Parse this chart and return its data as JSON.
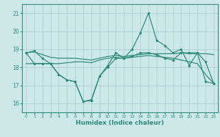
{
  "xlabel": "Humidex (Indice chaleur)",
  "x": [
    0,
    1,
    2,
    3,
    4,
    5,
    6,
    7,
    8,
    9,
    10,
    11,
    12,
    13,
    14,
    15,
    16,
    17,
    18,
    19,
    20,
    21,
    22,
    23
  ],
  "series_flat1": [
    18.8,
    18.85,
    18.7,
    18.55,
    18.5,
    18.5,
    18.5,
    18.45,
    18.4,
    18.5,
    18.6,
    18.65,
    18.6,
    18.65,
    18.7,
    18.75,
    18.75,
    18.75,
    18.75,
    18.8,
    18.75,
    18.75,
    18.75,
    18.7
  ],
  "series_flat2": [
    18.2,
    18.2,
    18.2,
    18.2,
    18.2,
    18.25,
    18.3,
    18.3,
    18.25,
    18.4,
    18.5,
    18.55,
    18.5,
    18.55,
    18.6,
    18.65,
    18.6,
    18.55,
    18.5,
    18.4,
    18.3,
    18.2,
    17.6,
    17.1
  ],
  "series_peak": [
    18.8,
    18.9,
    18.5,
    18.2,
    17.6,
    17.3,
    17.2,
    16.1,
    16.15,
    17.5,
    18.1,
    18.8,
    18.5,
    19.0,
    19.9,
    21.0,
    19.5,
    19.2,
    18.8,
    19.0,
    18.1,
    18.8,
    17.2,
    17.1
  ],
  "series_dip": [
    18.8,
    18.2,
    18.2,
    18.2,
    17.6,
    17.3,
    17.2,
    16.1,
    16.2,
    17.5,
    18.0,
    18.5,
    18.5,
    18.6,
    18.8,
    18.8,
    18.7,
    18.5,
    18.4,
    18.8,
    18.8,
    18.8,
    18.3,
    17.1
  ],
  "color": "#2d8b78",
  "bg_color": "#cce8e8",
  "grid_color": "#aacfcf",
  "ylim": [
    15.5,
    21.5
  ],
  "yticks": [
    16,
    17,
    18,
    19,
    20,
    21
  ],
  "xlim": [
    -0.5,
    23.5
  ],
  "figsize": [
    3.2,
    2.0
  ],
  "dpi": 100
}
